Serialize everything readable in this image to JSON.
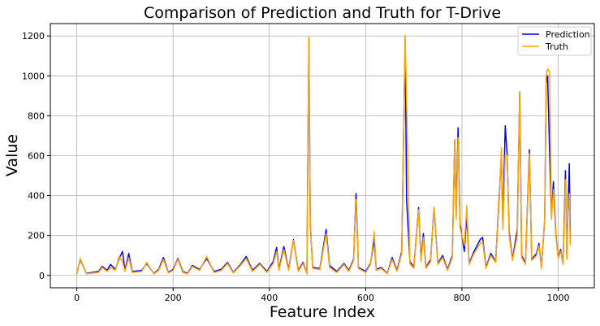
{
  "chart_data": {
    "type": "line",
    "title": "Comparison of Prediction and Truth for T-Drive",
    "xlabel": "Feature Index",
    "ylabel": "Value",
    "xlim": [
      -55,
      1075
    ],
    "ylim": [
      -62,
      1262
    ],
    "xticks": [
      0,
      200,
      400,
      600,
      800,
      1000
    ],
    "yticks": [
      0,
      200,
      400,
      600,
      800,
      1000,
      1200
    ],
    "grid": true,
    "legend_position": "top-right",
    "series": [
      {
        "name": "Prediction",
        "color": "#0000ff",
        "points": [
          [
            0,
            8
          ],
          [
            7,
            80
          ],
          [
            20,
            10
          ],
          [
            45,
            20
          ],
          [
            53,
            45
          ],
          [
            63,
            25
          ],
          [
            70,
            55
          ],
          [
            80,
            30
          ],
          [
            88,
            85
          ],
          [
            95,
            120
          ],
          [
            100,
            25
          ],
          [
            108,
            110
          ],
          [
            115,
            20
          ],
          [
            135,
            25
          ],
          [
            145,
            60
          ],
          [
            160,
            10
          ],
          [
            170,
            30
          ],
          [
            180,
            90
          ],
          [
            190,
            15
          ],
          [
            200,
            30
          ],
          [
            210,
            85
          ],
          [
            220,
            20
          ],
          [
            230,
            10
          ],
          [
            240,
            50
          ],
          [
            255,
            30
          ],
          [
            270,
            85
          ],
          [
            285,
            20
          ],
          [
            300,
            30
          ],
          [
            313,
            65
          ],
          [
            325,
            15
          ],
          [
            340,
            55
          ],
          [
            352,
            95
          ],
          [
            365,
            25
          ],
          [
            380,
            60
          ],
          [
            395,
            20
          ],
          [
            408,
            70
          ],
          [
            415,
            140
          ],
          [
            420,
            30
          ],
          [
            430,
            145
          ],
          [
            440,
            30
          ],
          [
            450,
            180
          ],
          [
            460,
            25
          ],
          [
            470,
            65
          ],
          [
            478,
            10
          ],
          [
            482,
            1180
          ],
          [
            485,
            260
          ],
          [
            490,
            40
          ],
          [
            505,
            35
          ],
          [
            518,
            230
          ],
          [
            525,
            50
          ],
          [
            540,
            20
          ],
          [
            555,
            60
          ],
          [
            565,
            25
          ],
          [
            575,
            80
          ],
          [
            580,
            410
          ],
          [
            585,
            40
          ],
          [
            600,
            20
          ],
          [
            610,
            60
          ],
          [
            618,
            180
          ],
          [
            622,
            30
          ],
          [
            632,
            40
          ],
          [
            645,
            10
          ],
          [
            655,
            90
          ],
          [
            665,
            25
          ],
          [
            675,
            120
          ],
          [
            682,
            1180
          ],
          [
            685,
            380
          ],
          [
            692,
            70
          ],
          [
            700,
            40
          ],
          [
            710,
            340
          ],
          [
            715,
            80
          ],
          [
            720,
            210
          ],
          [
            725,
            40
          ],
          [
            735,
            80
          ],
          [
            742,
            340
          ],
          [
            750,
            60
          ],
          [
            760,
            100
          ],
          [
            770,
            30
          ],
          [
            780,
            100
          ],
          [
            785,
            680
          ],
          [
            788,
            300
          ],
          [
            792,
            740
          ],
          [
            796,
            260
          ],
          [
            805,
            120
          ],
          [
            810,
            300
          ],
          [
            815,
            60
          ],
          [
            825,
            120
          ],
          [
            838,
            180
          ],
          [
            843,
            190
          ],
          [
            850,
            40
          ],
          [
            860,
            110
          ],
          [
            870,
            70
          ],
          [
            878,
            420
          ],
          [
            882,
            610
          ],
          [
            885,
            250
          ],
          [
            890,
            750
          ],
          [
            894,
            600
          ],
          [
            898,
            220
          ],
          [
            905,
            80
          ],
          [
            915,
            230
          ],
          [
            920,
            920
          ],
          [
            924,
            100
          ],
          [
            932,
            60
          ],
          [
            940,
            630
          ],
          [
            945,
            80
          ],
          [
            955,
            110
          ],
          [
            960,
            160
          ],
          [
            965,
            40
          ],
          [
            972,
            280
          ],
          [
            975,
            960
          ],
          [
            978,
            1000
          ],
          [
            982,
            620
          ],
          [
            986,
            300
          ],
          [
            990,
            470
          ],
          [
            995,
            210
          ],
          [
            1000,
            90
          ],
          [
            1005,
            130
          ],
          [
            1010,
            60
          ],
          [
            1015,
            525
          ],
          [
            1018,
            90
          ],
          [
            1020,
            300
          ],
          [
            1023,
            560
          ],
          [
            1025,
            180
          ]
        ]
      },
      {
        "name": "Truth",
        "color": "#ffa500",
        "points": [
          [
            0,
            5
          ],
          [
            7,
            85
          ],
          [
            20,
            8
          ],
          [
            45,
            15
          ],
          [
            53,
            40
          ],
          [
            63,
            20
          ],
          [
            70,
            40
          ],
          [
            80,
            25
          ],
          [
            88,
            95
          ],
          [
            95,
            70
          ],
          [
            100,
            20
          ],
          [
            108,
            90
          ],
          [
            115,
            15
          ],
          [
            135,
            20
          ],
          [
            145,
            65
          ],
          [
            160,
            8
          ],
          [
            170,
            25
          ],
          [
            180,
            80
          ],
          [
            190,
            12
          ],
          [
            200,
            25
          ],
          [
            210,
            80
          ],
          [
            220,
            15
          ],
          [
            230,
            8
          ],
          [
            240,
            45
          ],
          [
            255,
            25
          ],
          [
            270,
            95
          ],
          [
            285,
            15
          ],
          [
            300,
            25
          ],
          [
            313,
            60
          ],
          [
            325,
            12
          ],
          [
            340,
            50
          ],
          [
            352,
            85
          ],
          [
            365,
            20
          ],
          [
            380,
            55
          ],
          [
            395,
            15
          ],
          [
            408,
            60
          ],
          [
            415,
            120
          ],
          [
            420,
            25
          ],
          [
            430,
            130
          ],
          [
            440,
            25
          ],
          [
            450,
            175
          ],
          [
            460,
            20
          ],
          [
            470,
            60
          ],
          [
            478,
            8
          ],
          [
            482,
            1195
          ],
          [
            485,
            280
          ],
          [
            490,
            35
          ],
          [
            505,
            30
          ],
          [
            518,
            210
          ],
          [
            525,
            40
          ],
          [
            540,
            15
          ],
          [
            555,
            55
          ],
          [
            565,
            20
          ],
          [
            575,
            75
          ],
          [
            580,
            380
          ],
          [
            585,
            35
          ],
          [
            600,
            15
          ],
          [
            610,
            55
          ],
          [
            618,
            220
          ],
          [
            622,
            25
          ],
          [
            632,
            35
          ],
          [
            645,
            8
          ],
          [
            655,
            80
          ],
          [
            665,
            20
          ],
          [
            675,
            110
          ],
          [
            682,
            1205
          ],
          [
            685,
            870
          ],
          [
            692,
            60
          ],
          [
            700,
            35
          ],
          [
            710,
            330
          ],
          [
            715,
            70
          ],
          [
            720,
            190
          ],
          [
            725,
            35
          ],
          [
            735,
            70
          ],
          [
            742,
            340
          ],
          [
            750,
            55
          ],
          [
            760,
            90
          ],
          [
            770,
            25
          ],
          [
            780,
            90
          ],
          [
            785,
            680
          ],
          [
            788,
            280
          ],
          [
            792,
            690
          ],
          [
            796,
            240
          ],
          [
            805,
            150
          ],
          [
            810,
            350
          ],
          [
            815,
            55
          ],
          [
            825,
            110
          ],
          [
            838,
            160
          ],
          [
            843,
            170
          ],
          [
            850,
            35
          ],
          [
            860,
            100
          ],
          [
            870,
            65
          ],
          [
            878,
            400
          ],
          [
            882,
            640
          ],
          [
            885,
            230
          ],
          [
            890,
            600
          ],
          [
            894,
            600
          ],
          [
            898,
            200
          ],
          [
            905,
            75
          ],
          [
            915,
            200
          ],
          [
            920,
            920
          ],
          [
            924,
            90
          ],
          [
            932,
            55
          ],
          [
            940,
            610
          ],
          [
            945,
            75
          ],
          [
            955,
            100
          ],
          [
            960,
            150
          ],
          [
            965,
            35
          ],
          [
            972,
            290
          ],
          [
            975,
            1000
          ],
          [
            978,
            1035
          ],
          [
            982,
            1020
          ],
          [
            986,
            280
          ],
          [
            990,
            430
          ],
          [
            995,
            200
          ],
          [
            1000,
            85
          ],
          [
            1005,
            120
          ],
          [
            1010,
            55
          ],
          [
            1015,
            480
          ],
          [
            1018,
            80
          ],
          [
            1020,
            290
          ],
          [
            1023,
            410
          ],
          [
            1025,
            150
          ]
        ]
      }
    ]
  }
}
